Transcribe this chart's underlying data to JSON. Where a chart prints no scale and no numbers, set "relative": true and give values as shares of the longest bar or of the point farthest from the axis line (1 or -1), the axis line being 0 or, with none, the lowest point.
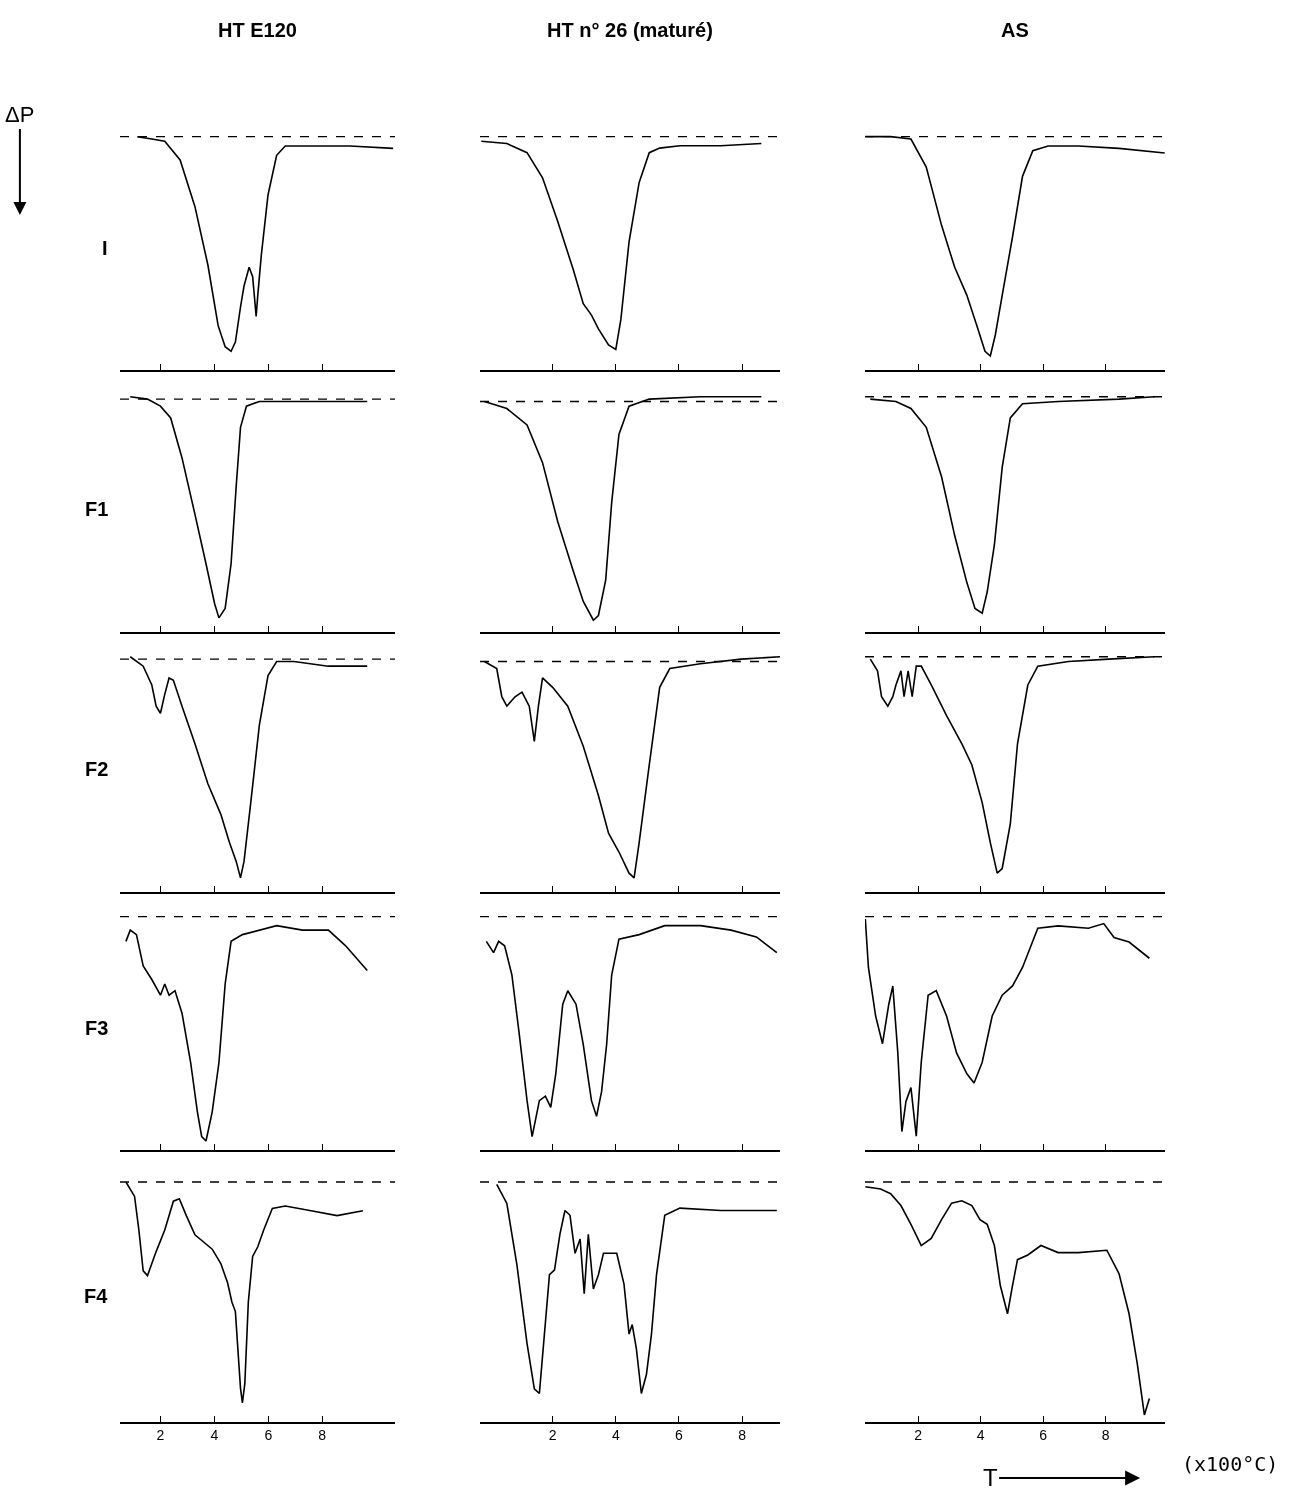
{
  "chart_data": [
    {
      "type": "line",
      "title": "HT E120",
      "ylabel": "I",
      "annotations": [
        "ΔP"
      ],
      "relative": true,
      "color": "#000000",
      "xlim": [
        0.5,
        10.7
      ],
      "xticks": [
        2,
        4,
        6,
        8
      ],
      "tick_labels": false,
      "ref_lines": [
        {
          "axis": "y",
          "value": 1.0,
          "line_style": "dashed"
        }
      ],
      "x": [
        1.14,
        1.68,
        2.16,
        2.73,
        3.28,
        3.76,
        4.14,
        4.4,
        4.62,
        4.78,
        4.97,
        5.1,
        5.29,
        5.42,
        5.55,
        5.61,
        5.74,
        5.99,
        6.31,
        6.63,
        7.11,
        7.59,
        9.03,
        10.63
      ],
      "values": [
        1,
        0.99,
        0.98,
        0.9,
        0.7,
        0.45,
        0.19,
        0.1,
        0.08,
        0.12,
        0.27,
        0.36,
        0.44,
        0.4,
        0.23,
        0.32,
        0.49,
        0.75,
        0.92,
        0.96,
        0.96,
        0.96,
        0.96,
        0.95
      ]
    },
    {
      "type": "line",
      "title": "HT n° 26 (maturé)",
      "relative": true,
      "color": "#000000",
      "xlim": [
        -0.3,
        9.2
      ],
      "xticks": [
        2,
        4,
        6,
        8
      ],
      "tick_labels": false,
      "ref_lines": [
        {
          "axis": "y",
          "value": 1.02,
          "line_style": "dashed"
        }
      ],
      "x": [
        -0.26,
        0.55,
        1.19,
        1.68,
        2.16,
        2.65,
        2.97,
        3.23,
        3.45,
        3.77,
        4.0,
        4.16,
        4.42,
        4.74,
        5.06,
        5.39,
        6.03,
        7.32,
        8.61
      ],
      "values": [
        1,
        0.99,
        0.95,
        0.84,
        0.65,
        0.44,
        0.29,
        0.24,
        0.18,
        0.11,
        0.09,
        0.22,
        0.56,
        0.82,
        0.95,
        0.97,
        0.98,
        0.98,
        0.99
      ]
    },
    {
      "type": "line",
      "title": "AS",
      "relative": true,
      "color": "#000000",
      "xlim": [
        0.3,
        9.9
      ],
      "xticks": [
        2,
        4,
        6,
        8
      ],
      "tick_labels": false,
      "ref_lines": [
        {
          "axis": "y",
          "value": 1.0,
          "line_style": "dashed"
        }
      ],
      "x": [
        0.31,
        1.12,
        1.77,
        2.26,
        2.75,
        3.17,
        3.56,
        3.88,
        4.14,
        4.31,
        4.47,
        4.69,
        5.02,
        5.34,
        5.67,
        6.16,
        7.13,
        8.43,
        9.89
      ],
      "values": [
        1,
        1,
        0.99,
        0.87,
        0.62,
        0.44,
        0.32,
        0.19,
        0.08,
        0.06,
        0.15,
        0.32,
        0.57,
        0.83,
        0.94,
        0.96,
        0.96,
        0.95,
        0.93
      ]
    },
    {
      "type": "line",
      "ylabel": "F1",
      "relative": true,
      "color": "#000000",
      "xlim": [
        0.5,
        10.7
      ],
      "xticks": [
        2,
        4,
        6,
        8
      ],
      "tick_labels": false,
      "ref_lines": [
        {
          "axis": "y",
          "value": 0.99,
          "line_style": "dashed"
        }
      ],
      "x": [
        0.88,
        1.52,
        2,
        2.38,
        2.8,
        3.28,
        3.69,
        4.01,
        4.17,
        4.4,
        4.62,
        4.81,
        4.97,
        5.19,
        5.67,
        6.95,
        8.55,
        9.67
      ],
      "values": [
        1,
        0.99,
        0.96,
        0.91,
        0.74,
        0.5,
        0.29,
        0.12,
        0.06,
        0.1,
        0.29,
        0.62,
        0.87,
        0.96,
        0.98,
        0.98,
        0.98,
        0.98
      ]
    },
    {
      "type": "line",
      "relative": true,
      "color": "#000000",
      "xlim": [
        -0.3,
        9.2
      ],
      "xticks": [
        2,
        4,
        6,
        8
      ],
      "tick_labels": false,
      "ref_lines": [
        {
          "axis": "y",
          "value": 0.98,
          "line_style": "dashed"
        }
      ],
      "x": [
        -0.16,
        0.55,
        1.19,
        1.68,
        2.16,
        2.65,
        2.97,
        3.29,
        3.45,
        3.68,
        3.87,
        4.1,
        4.42,
        5.06,
        6.68,
        8.61
      ],
      "values": [
        0.98,
        0.95,
        0.88,
        0.72,
        0.47,
        0.26,
        0.13,
        0.05,
        0.07,
        0.22,
        0.55,
        0.84,
        0.96,
        0.99,
        1,
        1
      ]
    },
    {
      "type": "line",
      "relative": true,
      "color": "#000000",
      "xlim": [
        0.3,
        9.9
      ],
      "xticks": [
        2,
        4,
        6,
        8
      ],
      "tick_labels": false,
      "ref_lines": [
        {
          "axis": "y",
          "value": 1.0,
          "line_style": "dashed"
        }
      ],
      "x": [
        0.47,
        1.29,
        1.77,
        2.26,
        2.75,
        3.17,
        3.56,
        3.82,
        4.05,
        4.21,
        4.44,
        4.69,
        4.95,
        5.34,
        6.48,
        8.43,
        9.56
      ],
      "values": [
        0.99,
        0.98,
        0.95,
        0.87,
        0.66,
        0.41,
        0.21,
        0.1,
        0.08,
        0.17,
        0.37,
        0.7,
        0.91,
        0.97,
        0.98,
        0.99,
        1
      ]
    },
    {
      "type": "line",
      "ylabel": "F2",
      "relative": true,
      "color": "#000000",
      "xlim": [
        0.5,
        10.7
      ],
      "xticks": [
        2,
        4,
        6,
        8
      ],
      "tick_labels": false,
      "ref_lines": [
        {
          "axis": "y",
          "value": 0.99,
          "line_style": "dashed"
        }
      ],
      "x": [
        0.88,
        1.36,
        1.68,
        1.84,
        2,
        2.16,
        2.32,
        2.48,
        2.8,
        3.28,
        3.76,
        4.24,
        4.56,
        4.81,
        4.97,
        5.1,
        5.35,
        5.67,
        5.99,
        6.31,
        6.95,
        8.23,
        9.67
      ],
      "values": [
        1,
        0.96,
        0.88,
        0.79,
        0.76,
        0.84,
        0.91,
        0.9,
        0.79,
        0.63,
        0.46,
        0.33,
        0.21,
        0.13,
        0.06,
        0.13,
        0.38,
        0.71,
        0.92,
        0.98,
        0.98,
        0.96,
        0.96
      ]
    },
    {
      "type": "line",
      "relative": true,
      "color": "#000000",
      "xlim": [
        -0.3,
        9.2
      ],
      "xticks": [
        2,
        4,
        6,
        8
      ],
      "tick_labels": false,
      "ref_lines": [
        {
          "axis": "y",
          "value": 0.98,
          "line_style": "dashed"
        }
      ],
      "x": [
        -0.16,
        0.23,
        0.39,
        0.55,
        0.81,
        1.03,
        1.26,
        1.42,
        1.55,
        1.68,
        2,
        2.48,
        2.97,
        3.45,
        3.77,
        4.1,
        4.42,
        4.58,
        4.74,
        5.06,
        5.39,
        5.71,
        6.68,
        7.97,
        9.2
      ],
      "values": [
        0.98,
        0.95,
        0.83,
        0.79,
        0.83,
        0.85,
        0.79,
        0.64,
        0.79,
        0.91,
        0.87,
        0.79,
        0.62,
        0.41,
        0.25,
        0.17,
        0.08,
        0.06,
        0.21,
        0.54,
        0.87,
        0.95,
        0.97,
        0.99,
        1
      ]
    },
    {
      "type": "line",
      "relative": true,
      "color": "#000000",
      "xlim": [
        0.3,
        9.9
      ],
      "xticks": [
        2,
        4,
        6,
        8
      ],
      "tick_labels": false,
      "ref_lines": [
        {
          "axis": "y",
          "value": 1.0,
          "line_style": "dashed"
        }
      ],
      "x": [
        0.47,
        0.7,
        0.83,
        1.03,
        1.19,
        1.29,
        1.45,
        1.55,
        1.68,
        1.81,
        1.94,
        2.1,
        2.42,
        2.91,
        3.4,
        3.72,
        4.05,
        4.31,
        4.53,
        4.69,
        4.95,
        5.18,
        5.51,
        5.83,
        6.81,
        8.1,
        9.56
      ],
      "values": [
        0.99,
        0.94,
        0.83,
        0.79,
        0.83,
        0.88,
        0.94,
        0.83,
        0.94,
        0.83,
        0.96,
        0.96,
        0.88,
        0.75,
        0.63,
        0.54,
        0.38,
        0.21,
        0.08,
        0.1,
        0.29,
        0.63,
        0.88,
        0.96,
        0.98,
        0.99,
        1
      ]
    },
    {
      "type": "line",
      "ylabel": "F3",
      "relative": true,
      "color": "#000000",
      "xlim": [
        0.5,
        10.7
      ],
      "xticks": [
        2,
        4,
        6,
        8
      ],
      "tick_labels": false,
      "ref_lines": [
        {
          "axis": "y",
          "value": 1.04,
          "line_style": "dashed"
        }
      ],
      "x": [
        0.72,
        0.88,
        1.11,
        1.36,
        1.68,
        2,
        2.16,
        2.32,
        2.54,
        2.8,
        3.12,
        3.37,
        3.53,
        3.69,
        3.92,
        4.17,
        4.4,
        4.62,
        5.04,
        6.31,
        7.27,
        8.23,
        8.87,
        9.67
      ],
      "values": [
        0.93,
        0.98,
        0.96,
        0.82,
        0.76,
        0.69,
        0.74,
        0.69,
        0.71,
        0.61,
        0.39,
        0.17,
        0.06,
        0.04,
        0.17,
        0.39,
        0.74,
        0.93,
        0.96,
        1,
        0.98,
        0.98,
        0.91,
        0.8
      ]
    },
    {
      "type": "line",
      "relative": true,
      "color": "#000000",
      "xlim": [
        -0.3,
        9.2
      ],
      "xticks": [
        2,
        4,
        6,
        8
      ],
      "tick_labels": false,
      "ref_lines": [
        {
          "axis": "y",
          "value": 1.04,
          "line_style": "dashed"
        }
      ],
      "x": [
        -0.1,
        0.13,
        0.29,
        0.48,
        0.71,
        0.94,
        1.19,
        1.35,
        1.58,
        1.77,
        1.94,
        2.1,
        2.32,
        2.48,
        2.74,
        2.97,
        3.23,
        3.39,
        3.55,
        3.71,
        3.87,
        4.1,
        4.74,
        5.55,
        6.68,
        7.65,
        8.45,
        9.1
      ],
      "values": [
        0.93,
        0.88,
        0.93,
        0.91,
        0.78,
        0.52,
        0.22,
        0.06,
        0.22,
        0.24,
        0.19,
        0.34,
        0.65,
        0.71,
        0.65,
        0.47,
        0.22,
        0.15,
        0.26,
        0.47,
        0.78,
        0.94,
        0.96,
        1,
        1,
        0.98,
        0.95,
        0.88
      ]
    },
    {
      "type": "line",
      "relative": true,
      "color": "#000000",
      "xlim": [
        0.3,
        9.9
      ],
      "xticks": [
        2,
        4,
        6,
        8
      ],
      "tick_labels": false,
      "ref_lines": [
        {
          "axis": "y",
          "value": 1.01,
          "line_style": "dashed"
        }
      ],
      "x": [
        0.31,
        0.41,
        0.64,
        0.86,
        1.06,
        1.19,
        1.35,
        1.48,
        1.61,
        1.77,
        1.94,
        2.1,
        2.32,
        2.58,
        2.91,
        3.23,
        3.56,
        3.79,
        4.05,
        4.37,
        4.69,
        5.02,
        5.34,
        5.83,
        6.48,
        7.45,
        7.94,
        8.27,
        8.75,
        9.4
      ],
      "values": [
        1,
        0.79,
        0.58,
        0.46,
        0.63,
        0.71,
        0.42,
        0.08,
        0.21,
        0.27,
        0.06,
        0.38,
        0.67,
        0.69,
        0.58,
        0.42,
        0.33,
        0.29,
        0.38,
        0.58,
        0.67,
        0.71,
        0.79,
        0.96,
        0.97,
        0.96,
        0.98,
        0.92,
        0.9,
        0.83
      ]
    },
    {
      "type": "line",
      "ylabel": "F4",
      "relative": true,
      "color": "#000000",
      "xlim": [
        0.5,
        10.7
      ],
      "xticks": [
        2,
        4,
        6,
        8
      ],
      "tick_labels": "x",
      "ref_lines": [
        {
          "axis": "y",
          "value": 1.0,
          "line_style": "dashed"
        }
      ],
      "x": [
        0.72,
        1.04,
        1.2,
        1.36,
        1.52,
        1.84,
        2.16,
        2.48,
        2.7,
        2.96,
        3.28,
        3.6,
        3.92,
        4.24,
        4.49,
        4.65,
        4.78,
        4.88,
        4.97,
        5.04,
        5.13,
        5.26,
        5.42,
        5.61,
        5.83,
        6.15,
        6.63,
        7.59,
        8.55,
        9.51
      ],
      "values": [
        1,
        0.94,
        0.8,
        0.63,
        0.61,
        0.71,
        0.8,
        0.92,
        0.93,
        0.86,
        0.78,
        0.75,
        0.72,
        0.66,
        0.58,
        0.5,
        0.46,
        0.29,
        0.14,
        0.08,
        0.16,
        0.5,
        0.69,
        0.73,
        0.8,
        0.89,
        0.9,
        0.88,
        0.86,
        0.88
      ]
    },
    {
      "type": "line",
      "relative": true,
      "color": "#000000",
      "xlim": [
        -0.3,
        9.2
      ],
      "xticks": [
        2,
        4,
        6,
        8
      ],
      "tick_labels": "x",
      "ref_lines": [
        {
          "axis": "y",
          "value": 1.01,
          "line_style": "dashed"
        }
      ],
      "x": [
        0.23,
        0.55,
        0.87,
        1.19,
        1.42,
        1.58,
        1.74,
        1.9,
        2.06,
        2.23,
        2.39,
        2.55,
        2.71,
        2.87,
        3.0,
        3.13,
        3.29,
        3.45,
        3.61,
        3.77,
        4.03,
        4.26,
        4.42,
        4.52,
        4.65,
        4.81,
        4.97,
        5.13,
        5.29,
        5.55,
        6.03,
        7.32,
        7.97,
        9.1
      ],
      "values": [
        1,
        0.92,
        0.66,
        0.33,
        0.14,
        0.12,
        0.37,
        0.62,
        0.64,
        0.79,
        0.89,
        0.87,
        0.71,
        0.77,
        0.54,
        0.79,
        0.56,
        0.62,
        0.71,
        0.71,
        0.71,
        0.58,
        0.37,
        0.41,
        0.31,
        0.12,
        0.2,
        0.37,
        0.62,
        0.87,
        0.9,
        0.89,
        0.89,
        0.89
      ]
    },
    {
      "type": "line",
      "annotations": [
        "T",
        "(x100°C)"
      ],
      "relative": true,
      "color": "#000000",
      "xlim": [
        0.3,
        9.9
      ],
      "xticks": [
        2,
        4,
        6,
        8
      ],
      "tick_labels": "x",
      "ref_lines": [
        {
          "axis": "y",
          "value": 1.02,
          "line_style": "dashed"
        }
      ],
      "x": [
        0.31,
        0.8,
        1.12,
        1.45,
        1.77,
        2.1,
        2.42,
        2.75,
        3.07,
        3.4,
        3.72,
        3.98,
        4.21,
        4.44,
        4.63,
        4.86,
        5.02,
        5.18,
        5.51,
        5.93,
        6.48,
        7.13,
        8.04,
        8.43,
        8.75,
        9.01,
        9.24,
        9.4
      ],
      "values": [
        1,
        0.99,
        0.97,
        0.92,
        0.84,
        0.75,
        0.78,
        0.86,
        0.93,
        0.94,
        0.92,
        0.86,
        0.84,
        0.75,
        0.58,
        0.46,
        0.58,
        0.69,
        0.71,
        0.75,
        0.72,
        0.72,
        0.73,
        0.63,
        0.46,
        0.25,
        0.03,
        0.1
      ]
    }
  ]
}
